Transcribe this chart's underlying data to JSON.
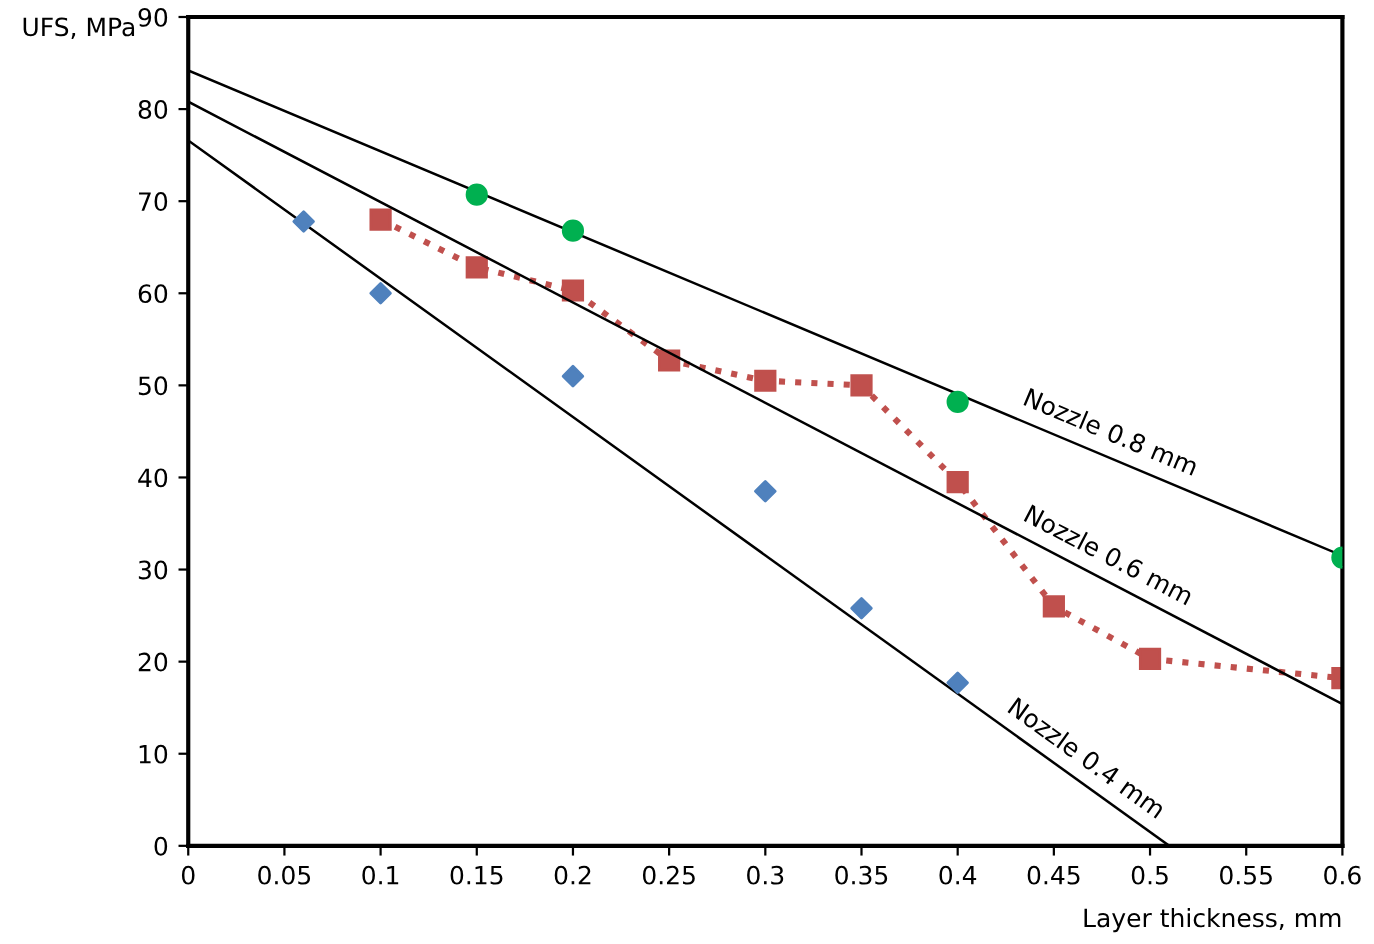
{
  "chart_data": {
    "type": "scatter",
    "xlabel": "Layer thickness, mm",
    "ylabel": "UFS, MPa",
    "xlim": [
      0,
      0.6
    ],
    "ylim": [
      0,
      90
    ],
    "xticks": [
      0,
      0.05,
      0.1,
      0.15,
      0.2,
      0.25,
      0.3,
      0.35,
      0.4,
      0.45,
      0.5,
      0.55,
      0.6
    ],
    "yticks": [
      0,
      10,
      20,
      30,
      40,
      50,
      60,
      70,
      80,
      90
    ],
    "grid": false,
    "legend": false,
    "series": [
      {
        "marker": "diamond",
        "color": "#4f81bd",
        "x": [
          0.06,
          0.1,
          0.2,
          0.3,
          0.35,
          0.4
        ],
        "values": [
          67.8,
          60,
          51,
          38.5,
          25.8,
          17.7
        ]
      },
      {
        "type": "line",
        "marker": "square",
        "line_style": "dotted",
        "color": "#c0504d",
        "x": [
          0.1,
          0.15,
          0.2,
          0.25,
          0.3,
          0.35,
          0.4,
          0.45,
          0.5,
          0.6
        ],
        "values": [
          68,
          62.8,
          60.3,
          52.7,
          50.5,
          50,
          39.5,
          26,
          20.3,
          18.2
        ]
      },
      {
        "marker": "circle",
        "color": "#00b050",
        "x": [
          0.15,
          0.2,
          0.4,
          0.6
        ],
        "values": [
          70.7,
          66.8,
          48.2,
          31.3
        ]
      },
      {
        "type": "line",
        "name": "Nozzle 0.8 mm",
        "marker": "none",
        "line_style": "solid",
        "color": "#000000",
        "x": [
          0,
          0.6
        ],
        "values": [
          84.2,
          31.5
        ]
      },
      {
        "type": "line",
        "name": "Nozzle 0.6 mm",
        "marker": "none",
        "line_style": "solid",
        "color": "#000000",
        "x": [
          0,
          0.6
        ],
        "values": [
          80.8,
          15.4
        ]
      },
      {
        "type": "line",
        "name": "Nozzle 0.4 mm",
        "marker": "none",
        "line_style": "solid",
        "color": "#000000",
        "x": [
          0,
          0.51
        ],
        "values": [
          76.6,
          0
        ]
      }
    ]
  }
}
